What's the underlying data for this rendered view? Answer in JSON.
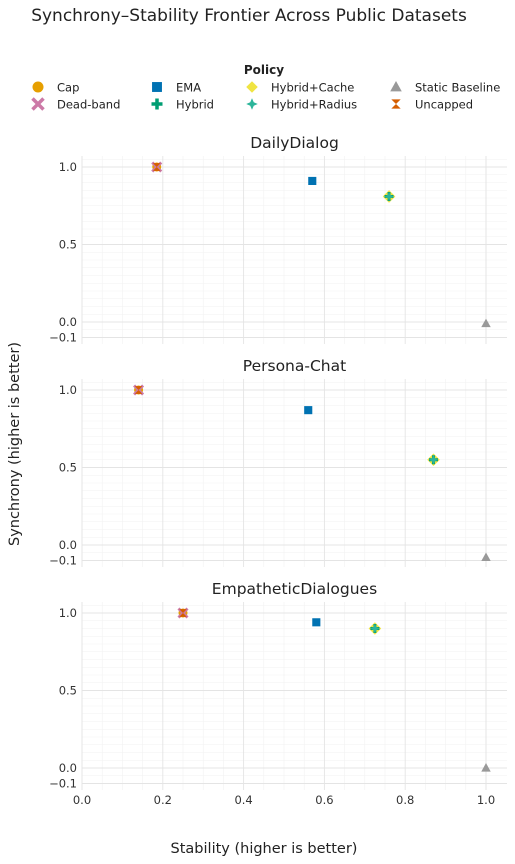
{
  "chart_data": {
    "type": "scatter",
    "title": "Synchrony–Stability Frontier Across Public Datasets",
    "xlabel": "Stability (higher is better)",
    "ylabel": "Synchrony (higher is better)",
    "xlim": [
      0.0,
      1.05
    ],
    "ylim": [
      -0.15,
      1.08
    ],
    "x_ticks": [
      "0.0",
      "0.2",
      "0.4",
      "0.6",
      "0.8",
      "1.0"
    ],
    "x_tick_values": [
      0.0,
      0.2,
      0.4,
      0.6,
      0.8,
      1.0
    ],
    "y_ticks": [
      "1.0",
      "0.5",
      "0.0",
      "−0.1"
    ],
    "y_tick_values": [
      1.0,
      0.5,
      0.0,
      -0.1
    ],
    "grid": true,
    "legend": {
      "title": "Policy",
      "placement": "top",
      "entries": [
        {
          "name": "Cap",
          "color": "#E69F00",
          "marker": "circle"
        },
        {
          "name": "Dead-band",
          "color": "#CC79A7",
          "marker": "x"
        },
        {
          "name": "EMA",
          "color": "#0072B2",
          "marker": "square"
        },
        {
          "name": "Hybrid",
          "color": "#009E73",
          "marker": "plus"
        },
        {
          "name": "Hybrid+Cache",
          "color": "#F0E442",
          "marker": "diamond"
        },
        {
          "name": "Hybrid+Radius",
          "color": "#2CB59A",
          "marker": "star4"
        },
        {
          "name": "Static Baseline",
          "color": "#999999",
          "marker": "triangle"
        },
        {
          "name": "Uncapped",
          "color": "#D55E00",
          "marker": "bowtie"
        }
      ]
    },
    "panels": [
      {
        "title": "DailyDialog",
        "points": [
          {
            "series": "Cap",
            "x": 0.185,
            "y": 1.0
          },
          {
            "series": "Dead-band",
            "x": 0.185,
            "y": 1.0
          },
          {
            "series": "Uncapped",
            "x": 0.185,
            "y": 1.0
          },
          {
            "series": "EMA",
            "x": 0.57,
            "y": 0.91
          },
          {
            "series": "Hybrid+Cache",
            "x": 0.76,
            "y": 0.81
          },
          {
            "series": "Hybrid",
            "x": 0.76,
            "y": 0.81
          },
          {
            "series": "Hybrid+Radius",
            "x": 0.76,
            "y": 0.81
          },
          {
            "series": "Static Baseline",
            "x": 1.0,
            "y": -0.01
          }
        ]
      },
      {
        "title": "Persona-Chat",
        "points": [
          {
            "series": "Cap",
            "x": 0.14,
            "y": 1.0
          },
          {
            "series": "Dead-band",
            "x": 0.14,
            "y": 1.0
          },
          {
            "series": "Uncapped",
            "x": 0.14,
            "y": 1.0
          },
          {
            "series": "EMA",
            "x": 0.56,
            "y": 0.87
          },
          {
            "series": "Hybrid+Cache",
            "x": 0.87,
            "y": 0.55
          },
          {
            "series": "Hybrid",
            "x": 0.87,
            "y": 0.55
          },
          {
            "series": "Hybrid+Radius",
            "x": 0.87,
            "y": 0.55
          },
          {
            "series": "Static Baseline",
            "x": 1.0,
            "y": -0.08
          }
        ]
      },
      {
        "title": "EmpatheticDialogues",
        "points": [
          {
            "series": "Cap",
            "x": 0.25,
            "y": 1.0
          },
          {
            "series": "Dead-band",
            "x": 0.25,
            "y": 1.0
          },
          {
            "series": "Uncapped",
            "x": 0.25,
            "y": 1.0
          },
          {
            "series": "EMA",
            "x": 0.58,
            "y": 0.94
          },
          {
            "series": "Hybrid+Cache",
            "x": 0.725,
            "y": 0.9
          },
          {
            "series": "Hybrid",
            "x": 0.725,
            "y": 0.9
          },
          {
            "series": "Hybrid+Radius",
            "x": 0.725,
            "y": 0.9
          },
          {
            "series": "Static Baseline",
            "x": 1.0,
            "y": 0.0
          }
        ]
      }
    ]
  }
}
